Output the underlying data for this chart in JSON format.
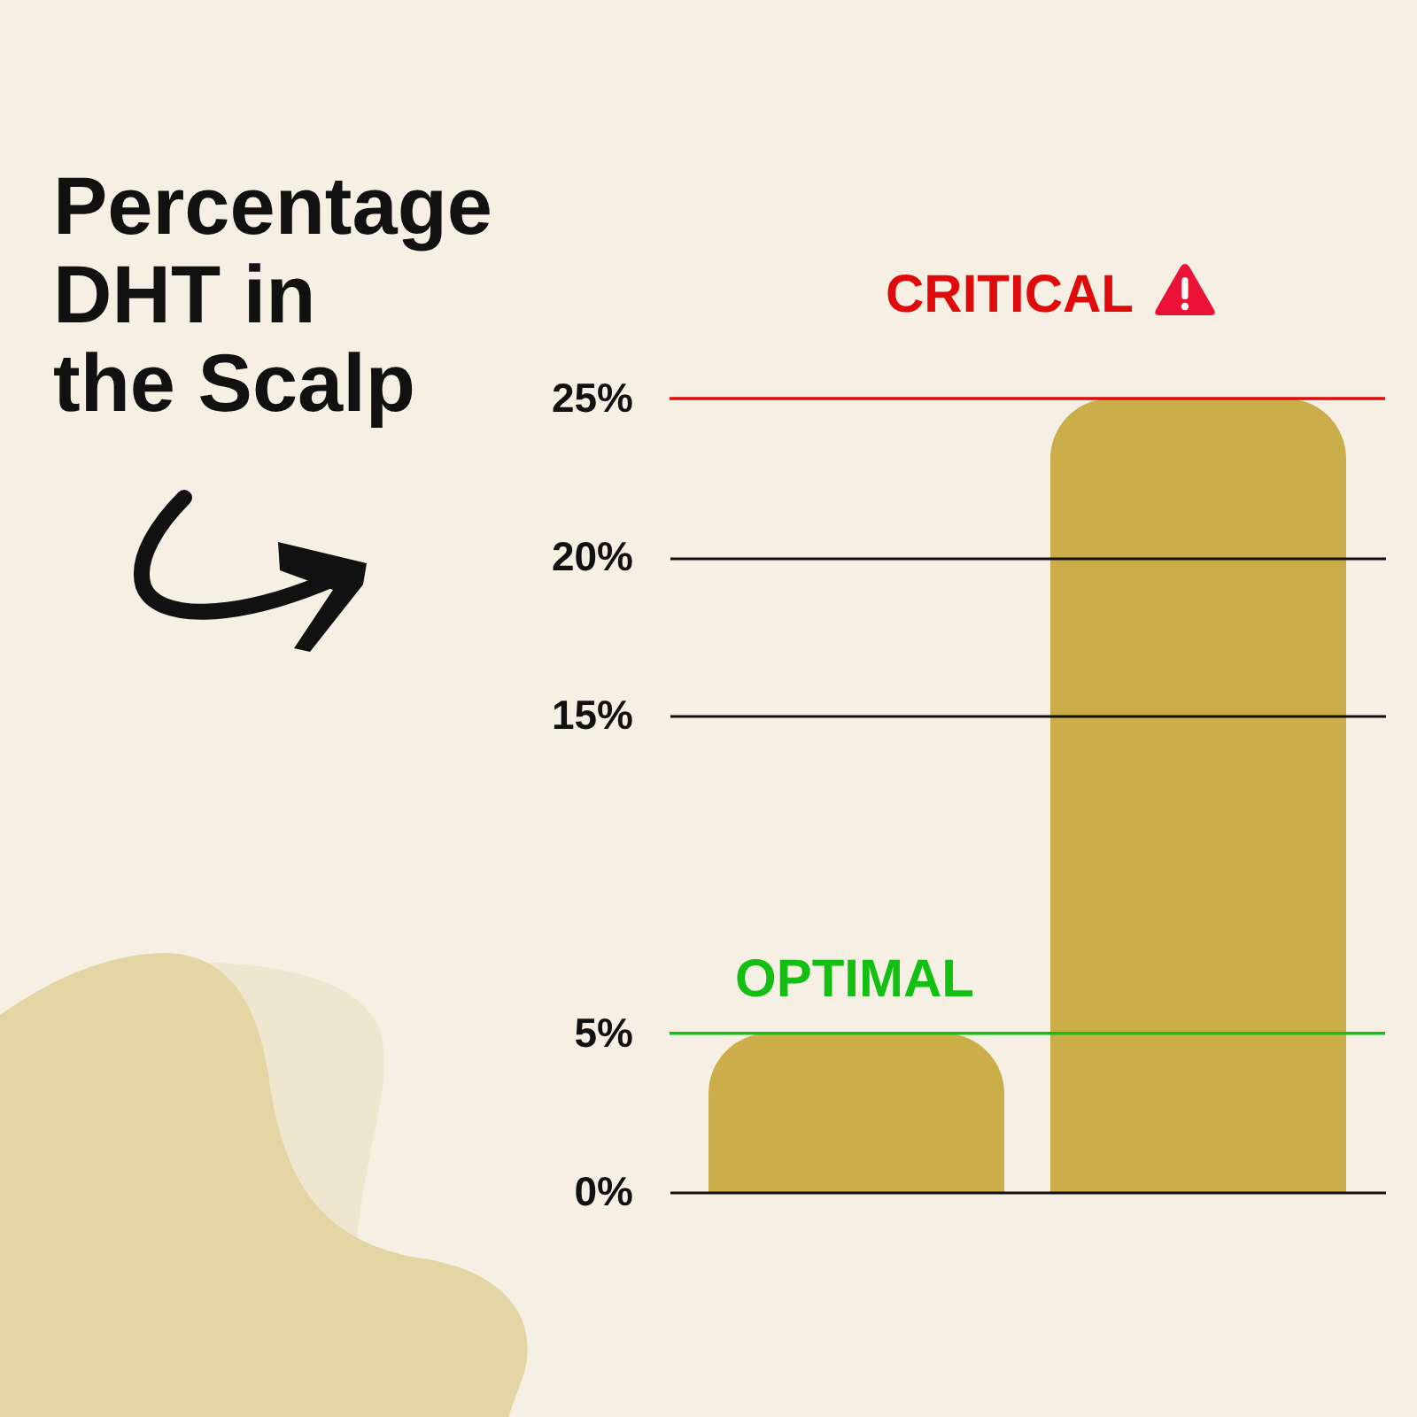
{
  "chart_data": {
    "type": "bar",
    "title": "Percentage DHT in the Scalp",
    "categories": [
      null,
      null
    ],
    "values": [
      5,
      25
    ],
    "color": "#cbae4a",
    "ylim": [
      0,
      25
    ],
    "yticks": [
      {
        "value": 0,
        "label": "0%"
      },
      {
        "value": 5,
        "label": "5%"
      },
      {
        "value": 15,
        "label": "15%"
      },
      {
        "value": 20,
        "label": "20%"
      },
      {
        "value": 25,
        "label": "25%"
      }
    ],
    "grid": "y",
    "tick_labels": "y",
    "ref_lines": [
      {
        "axis": "y",
        "value": 25,
        "label": "CRITICAL",
        "color": "#e00a0a"
      },
      {
        "axis": "y",
        "value": 5,
        "label": "OPTIMAL",
        "color": "#14bf14"
      }
    ]
  }
}
